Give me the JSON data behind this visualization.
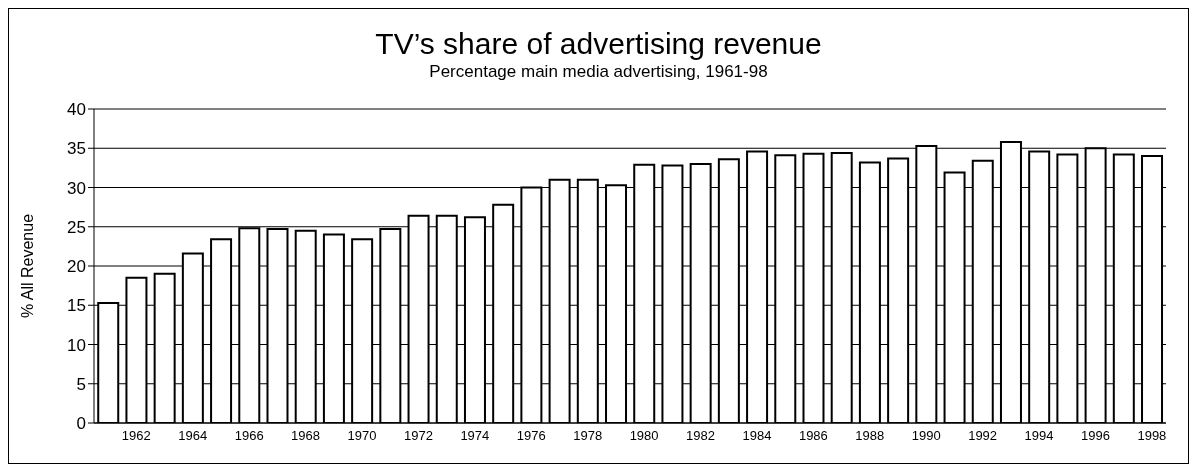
{
  "chart_data": {
    "type": "bar",
    "title": "TV’s share of advertising revenue",
    "subtitle": "Percentage main media advertising, 1961-98",
    "ylabel": "% All Revenue",
    "categories": [
      null,
      "1962",
      null,
      "1964",
      null,
      "1966",
      null,
      "1968",
      null,
      "1970",
      null,
      "1972",
      null,
      "1974",
      null,
      "1976",
      null,
      "1978",
      null,
      "1980",
      null,
      "1982",
      null,
      "1984",
      null,
      "1986",
      null,
      "1988",
      null,
      "1990",
      null,
      "1992",
      null,
      "1994",
      null,
      "1996",
      null,
      "1998"
    ],
    "values": [
      15.3,
      18.5,
      19.0,
      21.6,
      23.4,
      24.8,
      24.7,
      24.5,
      24.0,
      23.4,
      24.7,
      26.4,
      26.4,
      26.2,
      27.8,
      30.0,
      31.0,
      31.0,
      30.3,
      32.9,
      32.8,
      33.0,
      33.6,
      34.6,
      34.1,
      34.3,
      34.4,
      33.2,
      33.7,
      35.3,
      31.9,
      33.4,
      35.8,
      34.6,
      34.2,
      35.0,
      34.2,
      34.0
    ],
    "color": "#ffffff",
    "ylim": [
      0,
      40
    ],
    "yticks": [
      0,
      5,
      10,
      15,
      20,
      25,
      30,
      35,
      40
    ],
    "grid": "y"
  }
}
